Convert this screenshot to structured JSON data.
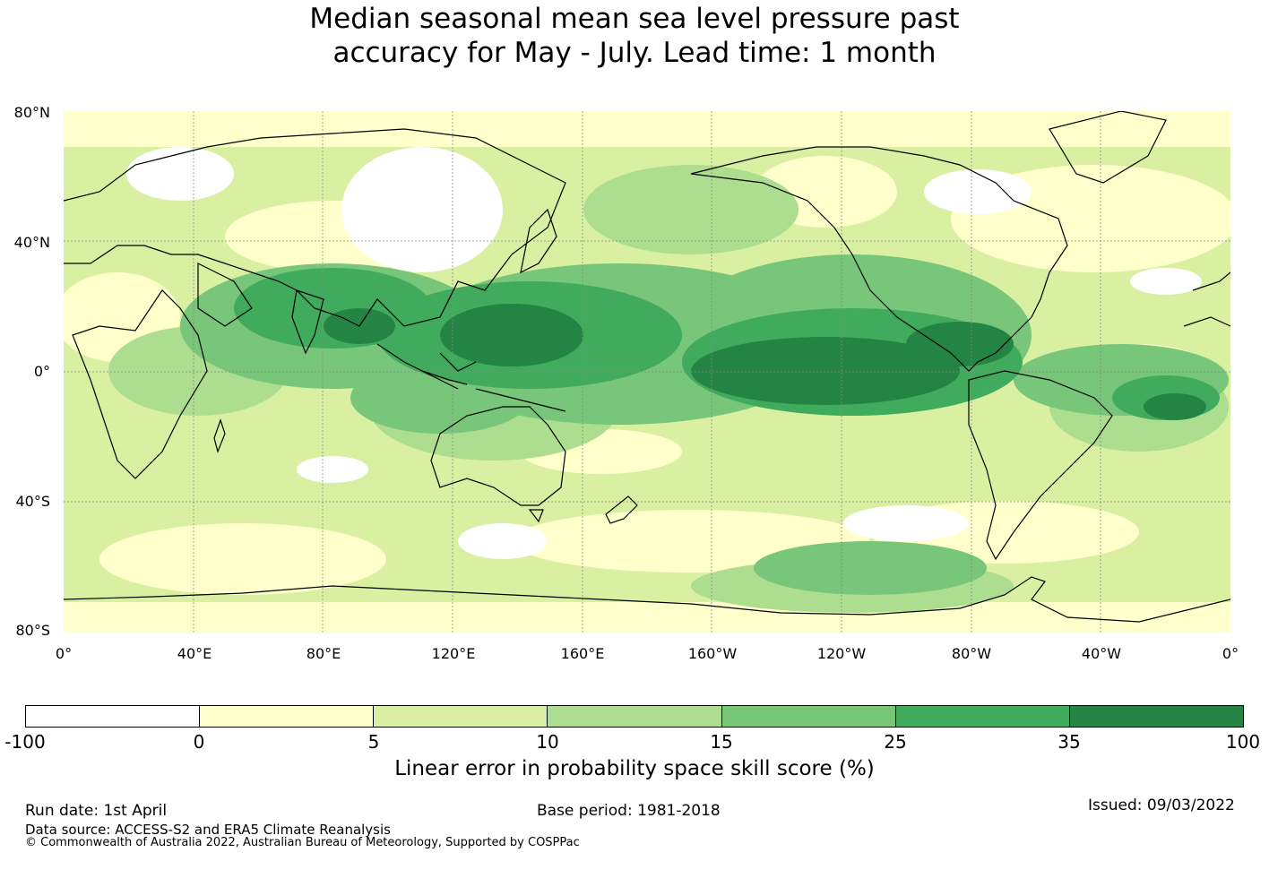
{
  "title_line1": "Median seasonal mean sea level pressure past",
  "title_line2": "accuracy for May - July. Lead time: 1 month",
  "lat_labels": [
    "80°N",
    "40°N",
    "0°",
    "40°S",
    "80°S"
  ],
  "lon_labels": [
    "0°",
    "40°E",
    "80°E",
    "120°E",
    "160°E",
    "160°W",
    "120°W",
    "80°W",
    "40°W",
    "0°"
  ],
  "colorbar": {
    "ticks": [
      "-100",
      "0",
      "5",
      "10",
      "15",
      "25",
      "35",
      "100"
    ],
    "colors": [
      "#ffffff",
      "#ffffcc",
      "#d9f0a3",
      "#addd8e",
      "#78c679",
      "#41ab5d",
      "#238443"
    ],
    "label": "Linear error in probability space skill score (%)"
  },
  "footer": {
    "run_date": "Run date: 1st April",
    "base_period": "Base period: 1981-2018",
    "issued": "Issued: 09/03/2022",
    "data_source": "Data source: ACCESS-S2 and ERA5 Climate Reanalysis",
    "copyright": "© Commonwealth of Australia 2022, Australian Bureau of Meteorology, Supported by COSPPac"
  }
}
